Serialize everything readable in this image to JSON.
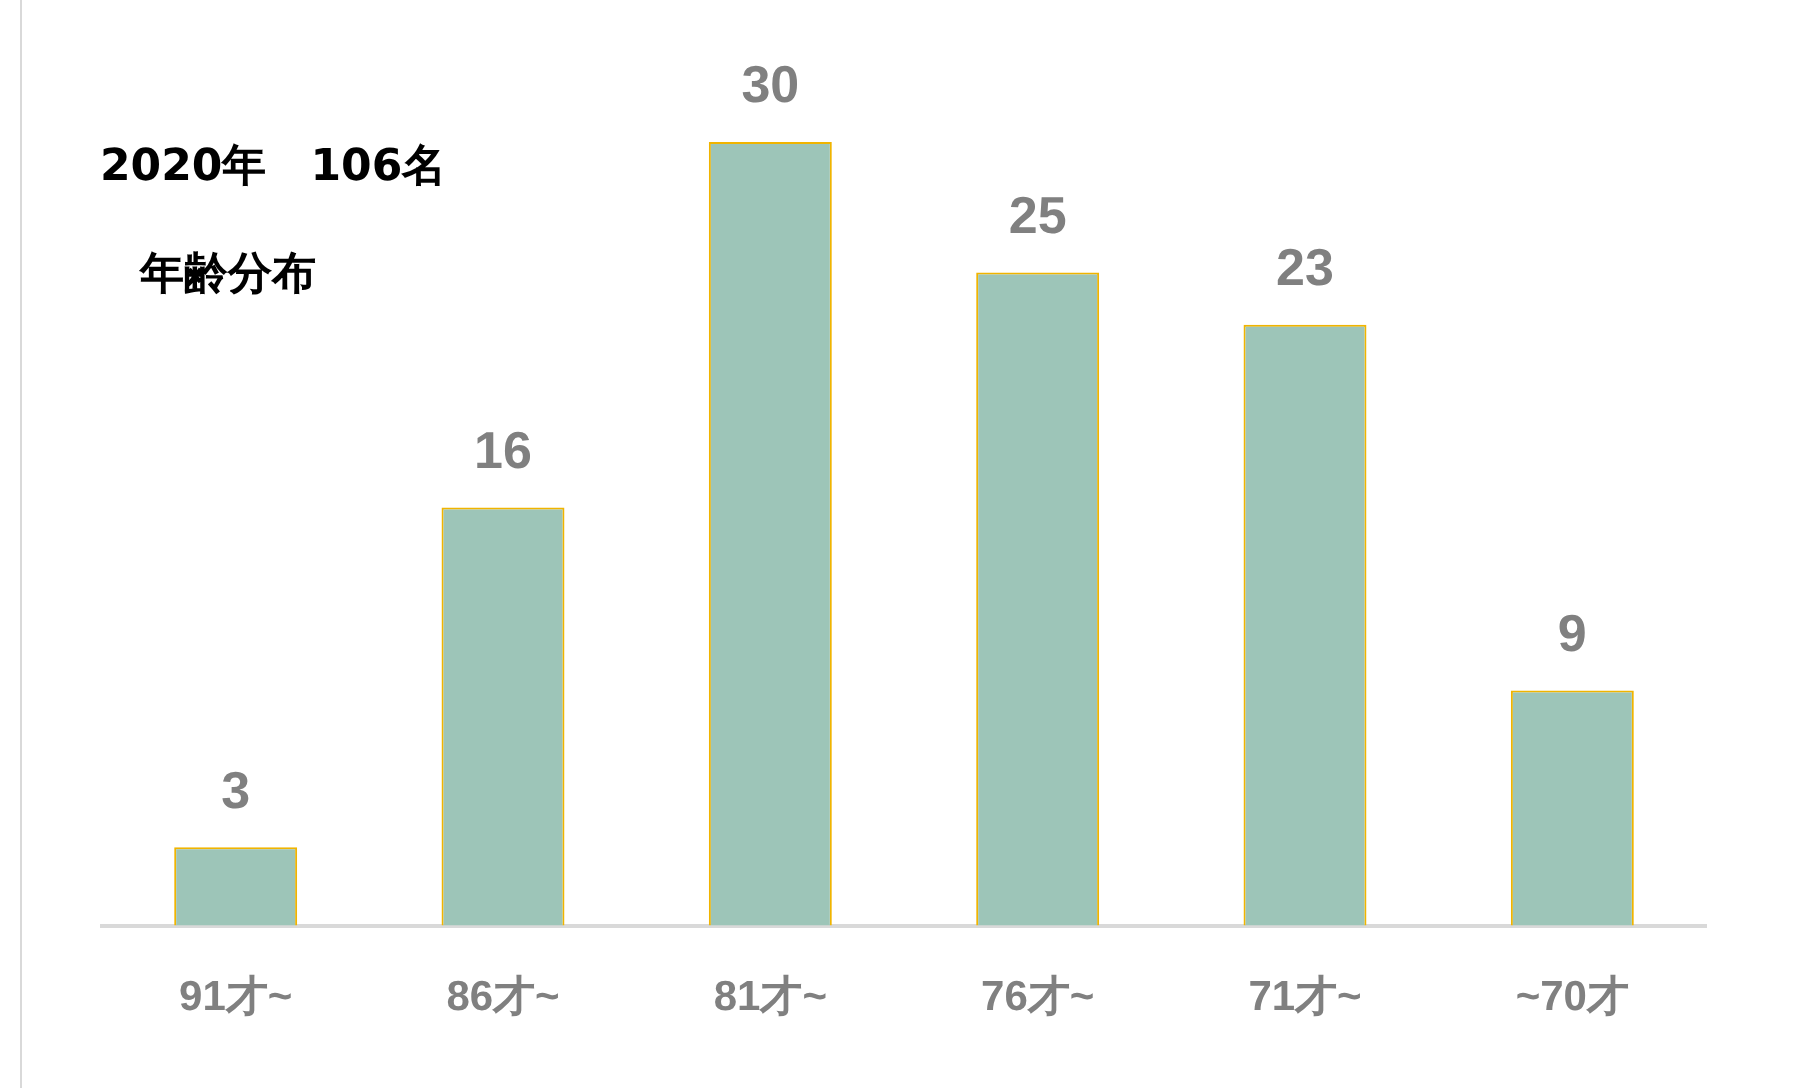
{
  "chart_data": {
    "type": "bar",
    "title": "2020年　106名",
    "subtitle": "年齢分布",
    "categories": [
      "91才~",
      "86才~",
      "81才~",
      "76才~",
      "71才~",
      "~70才"
    ],
    "values": [
      3,
      16,
      30,
      25,
      23,
      9
    ],
    "color": "#9dc5b8",
    "data_labels": true,
    "relative": false,
    "grid": false,
    "legend": false
  }
}
